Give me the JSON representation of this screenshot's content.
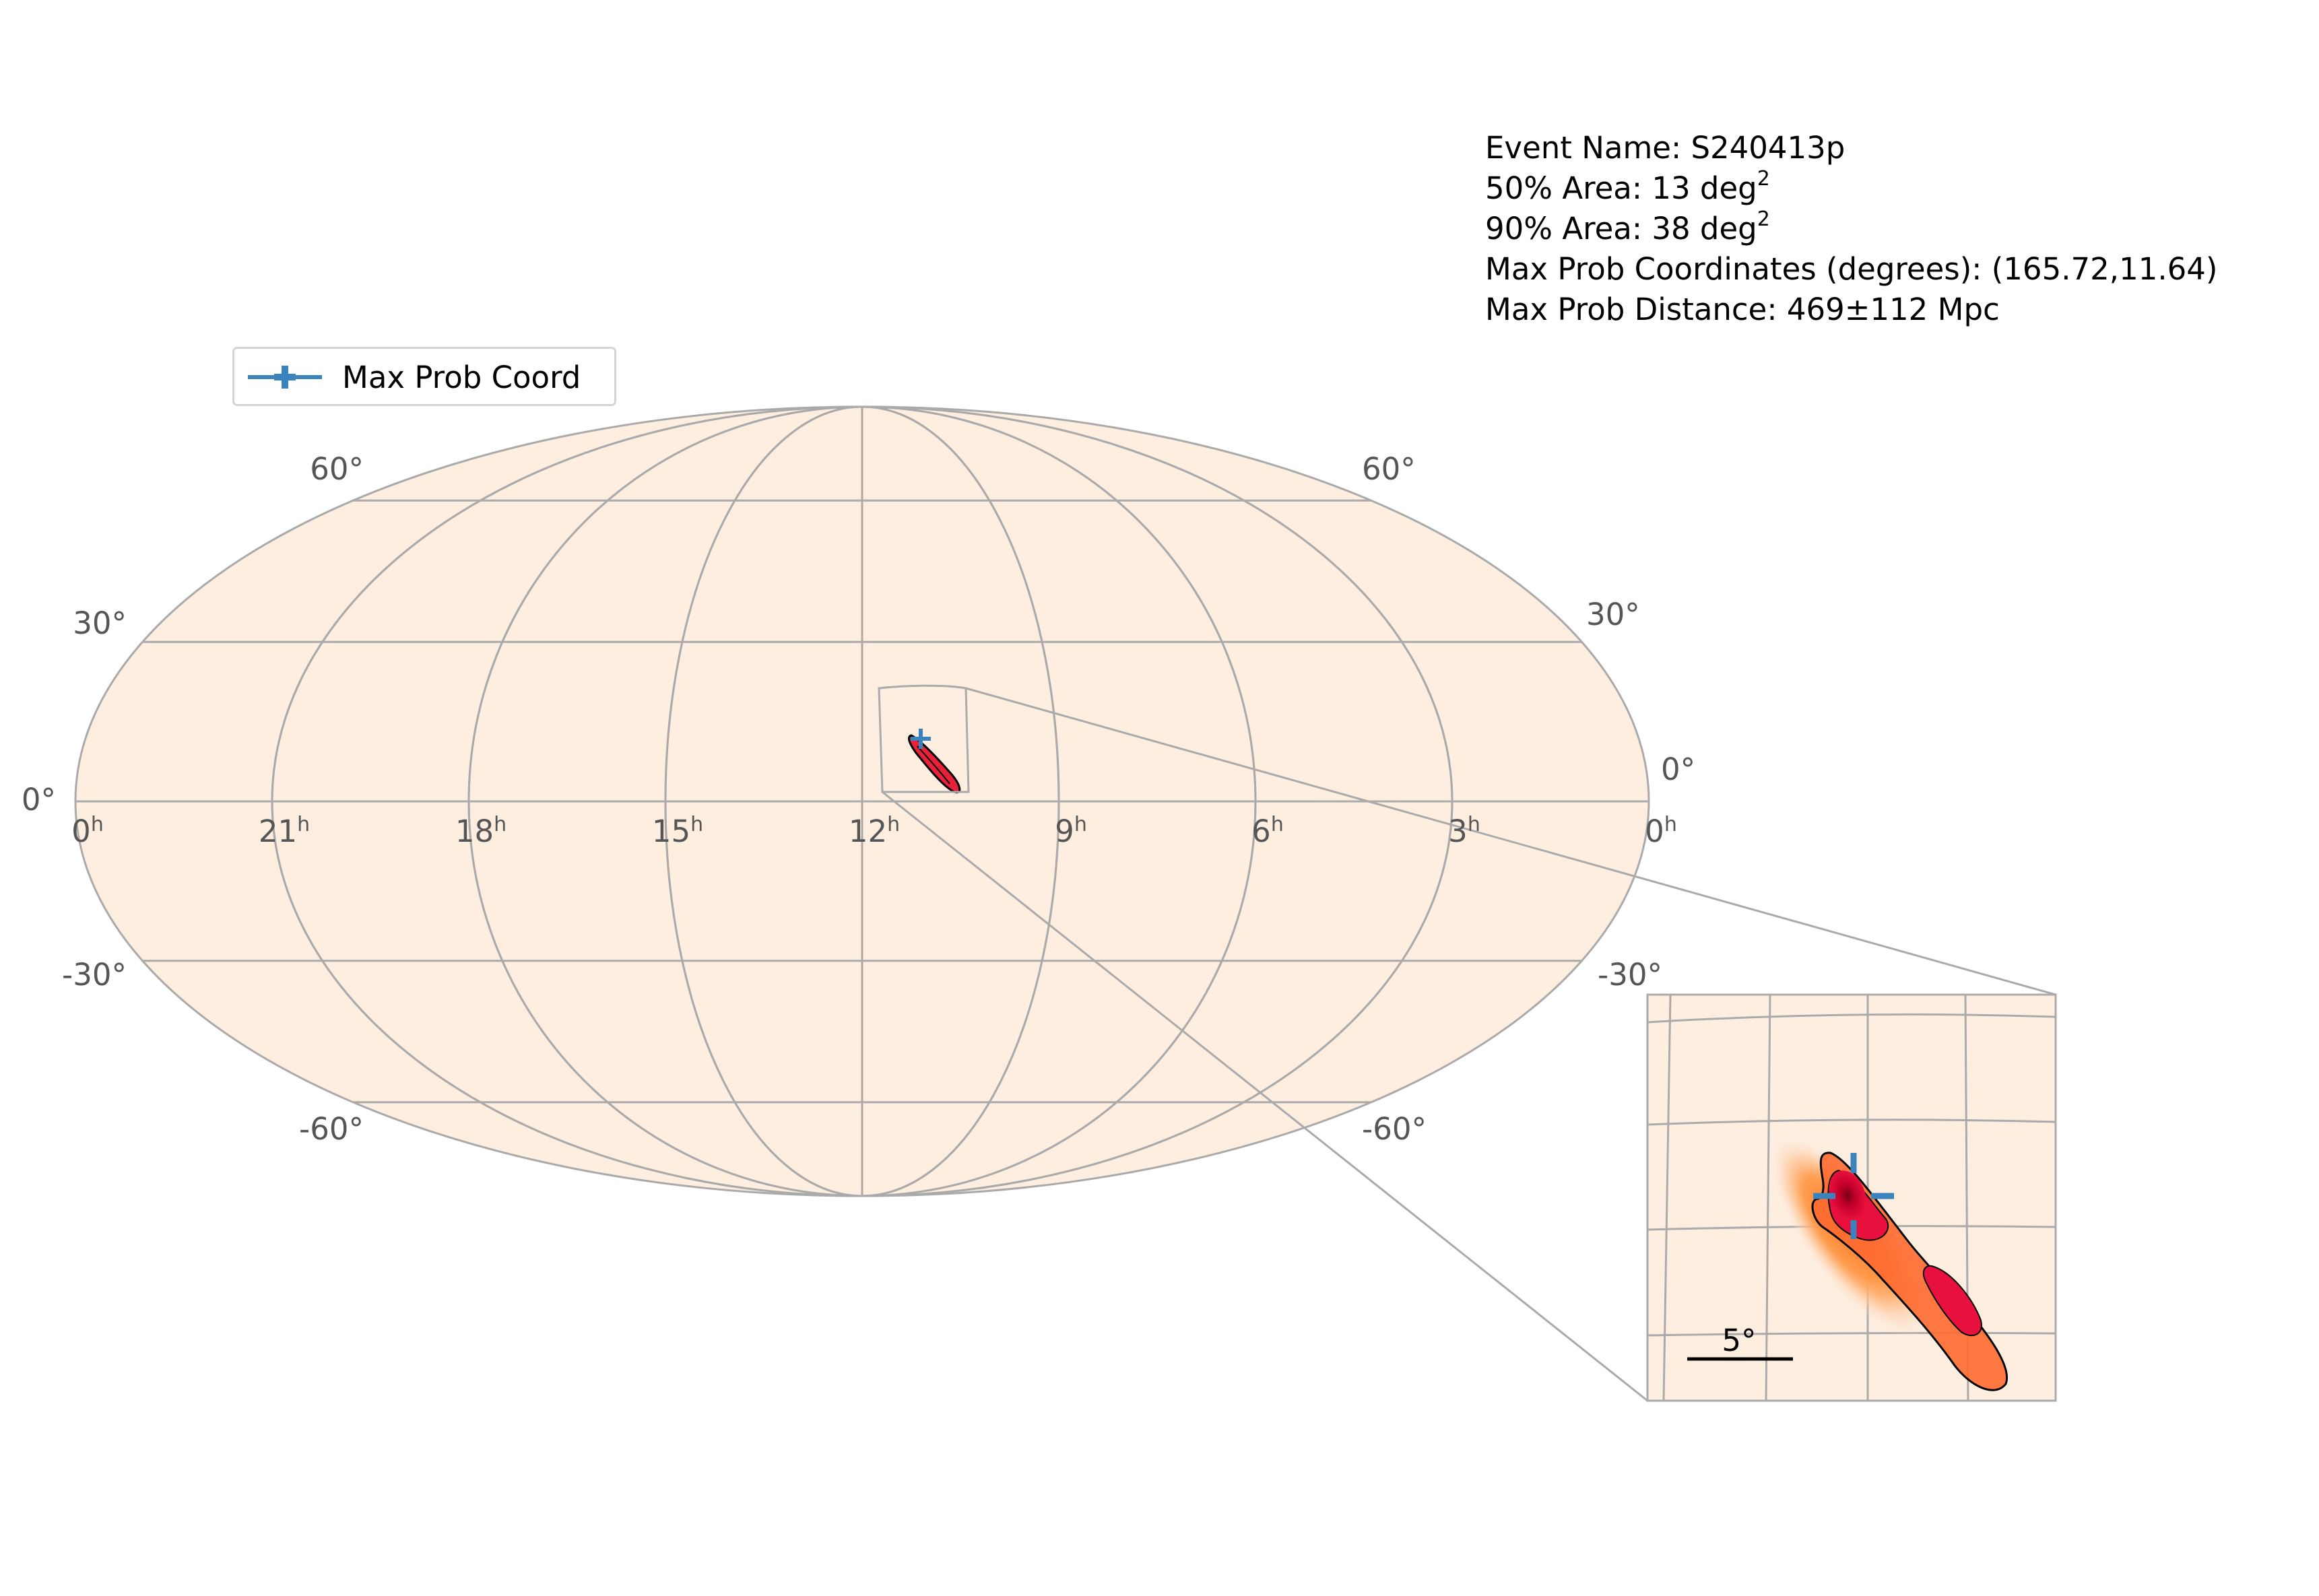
{
  "info": {
    "event_name": "Event Name: S240413p",
    "area50_prefix": "50% Area: 13 deg",
    "area90_prefix": "90% Area: 38 deg",
    "area_exponent": "2",
    "max_prob_coords": "Max Prob Coordinates (degrees): (165.72,11.64)",
    "max_prob_distance": "Max Prob Distance: 469±112 Mpc"
  },
  "legend": {
    "label": "Max Prob Coord",
    "marker_color": "#3a83bd"
  },
  "map": {
    "projection": "mollweide",
    "background_color": "#fdeee0",
    "grid_color": "#aaaaaa",
    "ra_labels": [
      {
        "hour": "0",
        "suffix": "h"
      },
      {
        "hour": "21",
        "suffix": "h"
      },
      {
        "hour": "18",
        "suffix": "h"
      },
      {
        "hour": "15",
        "suffix": "h"
      },
      {
        "hour": "12",
        "suffix": "h"
      },
      {
        "hour": "9",
        "suffix": "h"
      },
      {
        "hour": "6",
        "suffix": "h"
      },
      {
        "hour": "3",
        "suffix": "h"
      },
      {
        "hour": "0",
        "suffix": "h"
      }
    ],
    "dec_labels_left": [
      "60°",
      "30°",
      "0°",
      "-30°",
      "-60°"
    ],
    "dec_labels_right": [
      "60°",
      "30°",
      "0°",
      "-30°",
      "-60°"
    ]
  },
  "inset": {
    "scale_label": "5°"
  },
  "chart_data": {
    "type": "skymap",
    "max_prob_ra_deg": 165.72,
    "max_prob_dec_deg": 11.64,
    "area_50_deg2": 13,
    "area_90_deg2": 38,
    "distance_mpc": 469,
    "distance_err_mpc": 112
  }
}
